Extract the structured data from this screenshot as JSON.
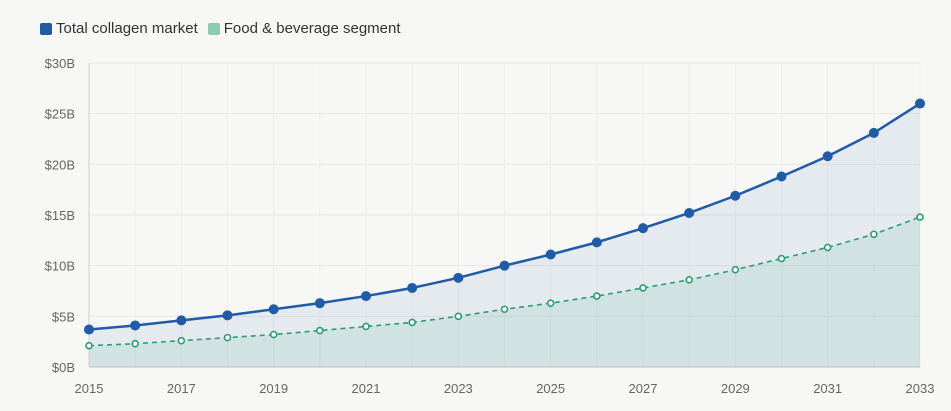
{
  "chart_data": {
    "type": "line",
    "x": [
      2015,
      2016,
      2017,
      2018,
      2019,
      2020,
      2021,
      2022,
      2023,
      2024,
      2025,
      2026,
      2027,
      2028,
      2029,
      2030,
      2031,
      2032,
      2033
    ],
    "x_tick_labels": [
      "2015",
      "2017",
      "2019",
      "2021",
      "2023",
      "2025",
      "2027",
      "2029",
      "2031",
      "2033"
    ],
    "y_tick_labels": [
      "$0B",
      "$5B",
      "$10B",
      "$15B",
      "$20B",
      "$25B",
      "$30B"
    ],
    "ylim": [
      0,
      30
    ],
    "grid": true,
    "legend_position": "top-left",
    "series": [
      {
        "name": "Total collagen market",
        "color": "#1f5ba6",
        "style": "solid",
        "values": [
          3.7,
          4.1,
          4.6,
          5.1,
          5.7,
          6.3,
          7.0,
          7.8,
          8.8,
          10.0,
          11.1,
          12.3,
          13.7,
          15.2,
          16.9,
          18.8,
          20.8,
          23.1,
          26.0
        ]
      },
      {
        "name": "Food & beverage segment",
        "color": "#2a9d73",
        "legend_color": "#8fcbb2",
        "style": "dashed",
        "values": [
          2.1,
          2.3,
          2.6,
          2.9,
          3.2,
          3.6,
          4.0,
          4.4,
          5.0,
          5.7,
          6.3,
          7.0,
          7.8,
          8.6,
          9.6,
          10.7,
          11.8,
          13.1,
          14.8
        ]
      }
    ]
  }
}
